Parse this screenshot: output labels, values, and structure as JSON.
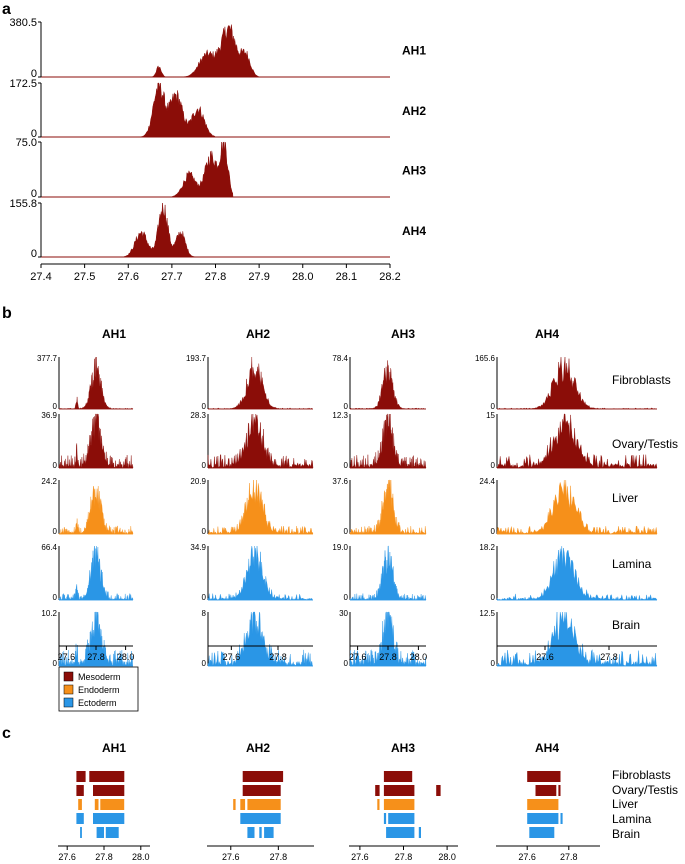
{
  "colors": {
    "mesoderm": "#8b0d08",
    "endoderm": "#f6901a",
    "ectoderm": "#2a96e6",
    "axis": "#000000"
  },
  "chart_data": [
    {
      "panel": "a",
      "type": "area",
      "title": "",
      "xlabel": "",
      "ylabel": "",
      "xlim": [
        27.4,
        28.2
      ],
      "xticks": [
        "27.4",
        "27.5",
        "27.6",
        "27.7",
        "27.8",
        "27.9",
        "28.0",
        "28.1",
        "28.2"
      ],
      "series": [
        {
          "name": "AH1",
          "ymax_label": "380.5",
          "ymin_label": "0",
          "ymax": 380.5,
          "peaks": [
            {
              "x": 27.67,
              "h": 70,
              "w": 0.008
            },
            {
              "x": 27.78,
              "h": 150,
              "w": 0.025
            },
            {
              "x": 27.83,
              "h": 330,
              "w": 0.025
            },
            {
              "x": 27.87,
              "h": 140,
              "w": 0.015
            }
          ],
          "range": [
            27.64,
            27.9
          ]
        },
        {
          "name": "AH2",
          "ymax_label": "172.5",
          "ymin_label": "0",
          "ymax": 172.5,
          "peaks": [
            {
              "x": 27.67,
              "h": 160,
              "w": 0.018
            },
            {
              "x": 27.71,
              "h": 130,
              "w": 0.02
            },
            {
              "x": 27.76,
              "h": 90,
              "w": 0.02
            }
          ],
          "range": [
            27.62,
            27.8
          ]
        },
        {
          "name": "AH3",
          "ymax_label": "75.0",
          "ymin_label": "0",
          "ymax": 75.0,
          "peaks": [
            {
              "x": 27.74,
              "h": 30,
              "w": 0.02
            },
            {
              "x": 27.79,
              "h": 55,
              "w": 0.02
            },
            {
              "x": 27.82,
              "h": 70,
              "w": 0.012
            }
          ],
          "range": [
            27.7,
            27.84
          ]
        },
        {
          "name": "AH4",
          "ymax_label": "155.8",
          "ymin_label": "0",
          "ymax": 155.8,
          "peaks": [
            {
              "x": 27.63,
              "h": 70,
              "w": 0.02
            },
            {
              "x": 27.68,
              "h": 145,
              "w": 0.015
            },
            {
              "x": 27.72,
              "h": 70,
              "w": 0.015
            }
          ],
          "range": [
            27.59,
            27.76
          ]
        }
      ]
    },
    {
      "panel": "b",
      "type": "area",
      "columns": [
        "AH1",
        "AH2",
        "AH3",
        "AH4"
      ],
      "rows": [
        "Fibroblasts",
        "Ovary/Testis",
        "Liver",
        "Lamina",
        "Brain"
      ],
      "row_germ": [
        "mesoderm",
        "mesoderm",
        "endoderm",
        "ectoderm",
        "ectoderm"
      ],
      "column_centers": [
        27.8,
        27.7,
        27.8,
        27.66
      ],
      "ymax_labels": [
        [
          "377.7",
          "193.7",
          "78.4",
          "165.6"
        ],
        [
          "36.9",
          "28.3",
          "12.3",
          "15"
        ],
        [
          "24.2",
          "20.9",
          "37.6",
          "24.4"
        ],
        [
          "66.4",
          "34.9",
          "19.0",
          "18.2"
        ],
        [
          "10.2",
          "8",
          "30",
          "12.5"
        ]
      ],
      "ymin_label": "0",
      "xticks": [
        [
          "27.6",
          "27.8",
          "28.0"
        ],
        [
          "27.6",
          "27.8"
        ],
        [
          "27.6",
          "27.8",
          "28.0"
        ],
        [
          "27.6",
          "27.8"
        ]
      ],
      "xlims": [
        [
          27.55,
          28.05
        ],
        [
          27.5,
          27.95
        ],
        [
          27.55,
          28.05
        ],
        [
          27.45,
          27.95
        ]
      ]
    },
    {
      "panel": "c",
      "type": "bar",
      "columns": [
        "AH1",
        "AH2",
        "AH3",
        "AH4"
      ],
      "rows": [
        "Fibroblasts",
        "Ovary/Testis",
        "Liver",
        "Lamina",
        "Brain"
      ],
      "row_germ": [
        "mesoderm",
        "mesoderm",
        "endoderm",
        "ectoderm",
        "ectoderm"
      ],
      "xticks": [
        [
          "27.6",
          "27.8",
          "28.0"
        ],
        [
          "27.6",
          "27.8"
        ],
        [
          "27.6",
          "27.8",
          "28.0"
        ],
        [
          "27.6",
          "27.8"
        ]
      ],
      "xlims": [
        [
          27.55,
          28.05
        ],
        [
          27.5,
          27.95
        ],
        [
          27.55,
          28.05
        ],
        [
          27.45,
          27.95
        ]
      ],
      "segments": [
        [
          [
            [
              27.65,
              27.7
            ],
            [
              27.72,
              27.91
            ]
          ],
          [
            [
              27.65,
              27.69
            ],
            [
              27.74,
              27.91
            ]
          ],
          [
            [
              27.66,
              27.68
            ],
            [
              27.75,
              27.77
            ],
            [
              27.78,
              27.91
            ]
          ],
          [
            [
              27.65,
              27.69
            ],
            [
              27.74,
              27.91
            ]
          ],
          [
            [
              27.67,
              27.68
            ],
            [
              27.76,
              27.8
            ],
            [
              27.81,
              27.88
            ]
          ]
        ],
        [
          [
            [
              27.65,
              27.82
            ]
          ],
          [
            [
              27.65,
              27.81
            ]
          ],
          [
            [
              27.61,
              27.62
            ],
            [
              27.64,
              27.66
            ],
            [
              27.67,
              27.81
            ]
          ],
          [
            [
              27.64,
              27.81
            ]
          ],
          [
            [
              27.67,
              27.7
            ],
            [
              27.72,
              27.73
            ],
            [
              27.74,
              27.78
            ]
          ]
        ],
        [
          [
            [
              27.71,
              27.84
            ]
          ],
          [
            [
              27.67,
              27.69
            ],
            [
              27.71,
              27.85
            ],
            [
              27.95,
              27.97
            ]
          ],
          [
            [
              27.68,
              27.69
            ],
            [
              27.71,
              27.85
            ]
          ],
          [
            [
              27.71,
              27.72
            ],
            [
              27.73,
              27.85
            ]
          ],
          [
            [
              27.72,
              27.85
            ],
            [
              27.87,
              27.88
            ]
          ]
        ],
        [
          [
            [
              27.6,
              27.76
            ]
          ],
          [
            [
              27.64,
              27.74
            ],
            [
              27.75,
              27.76
            ]
          ],
          [
            [
              27.6,
              27.75
            ]
          ],
          [
            [
              27.6,
              27.75
            ],
            [
              27.76,
              27.77
            ]
          ],
          [
            [
              27.61,
              27.73
            ]
          ]
        ]
      ]
    }
  ],
  "panel_labels": {
    "a": "a",
    "b": "b",
    "c": "c"
  },
  "legend": [
    {
      "label": "Mesoderm",
      "germ": "mesoderm"
    },
    {
      "label": "Endoderm",
      "germ": "endoderm"
    },
    {
      "label": "Ectoderm",
      "germ": "ectoderm"
    }
  ]
}
